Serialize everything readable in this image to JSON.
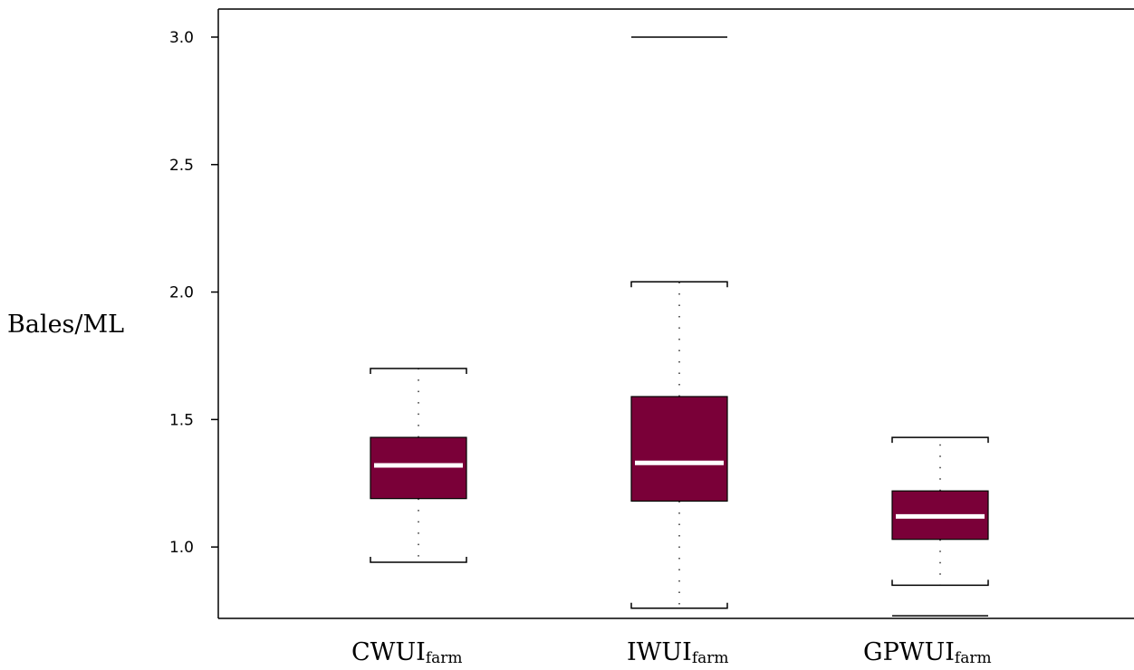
{
  "chart_data": {
    "type": "boxplot",
    "ylabel": "Bales/ML",
    "ylim": [
      0.72,
      3.11
    ],
    "yticks": [
      1.0,
      1.5,
      2.0,
      2.5,
      3.0
    ],
    "ytick_labels": [
      "1.0",
      "1.5",
      "2.0",
      "2.5",
      "3.0"
    ],
    "categories": [
      {
        "main": "CWUI",
        "sub": "farm"
      },
      {
        "main": "IWUI",
        "sub": "farm"
      },
      {
        "main": "GPWUI",
        "sub": "farm"
      }
    ],
    "boxes": [
      {
        "category": "CWUI farm",
        "whisker_low": 0.94,
        "q1": 1.19,
        "median": 1.32,
        "q3": 1.43,
        "whisker_high": 1.7,
        "outliers": []
      },
      {
        "category": "IWUI farm",
        "whisker_low": 0.76,
        "q1": 1.18,
        "median": 1.33,
        "q3": 1.59,
        "whisker_high": 2.04,
        "outliers": [
          3.0
        ]
      },
      {
        "category": "GPWUI farm",
        "whisker_low": 0.85,
        "q1": 1.03,
        "median": 1.12,
        "q3": 1.22,
        "whisker_high": 1.43,
        "outliers": [
          0.73
        ]
      }
    ],
    "colors": {
      "box_fill": "#7a0038",
      "box_edge": "#000000",
      "median": "#ffffff",
      "whisker": "#000000"
    },
    "grid": false
  }
}
